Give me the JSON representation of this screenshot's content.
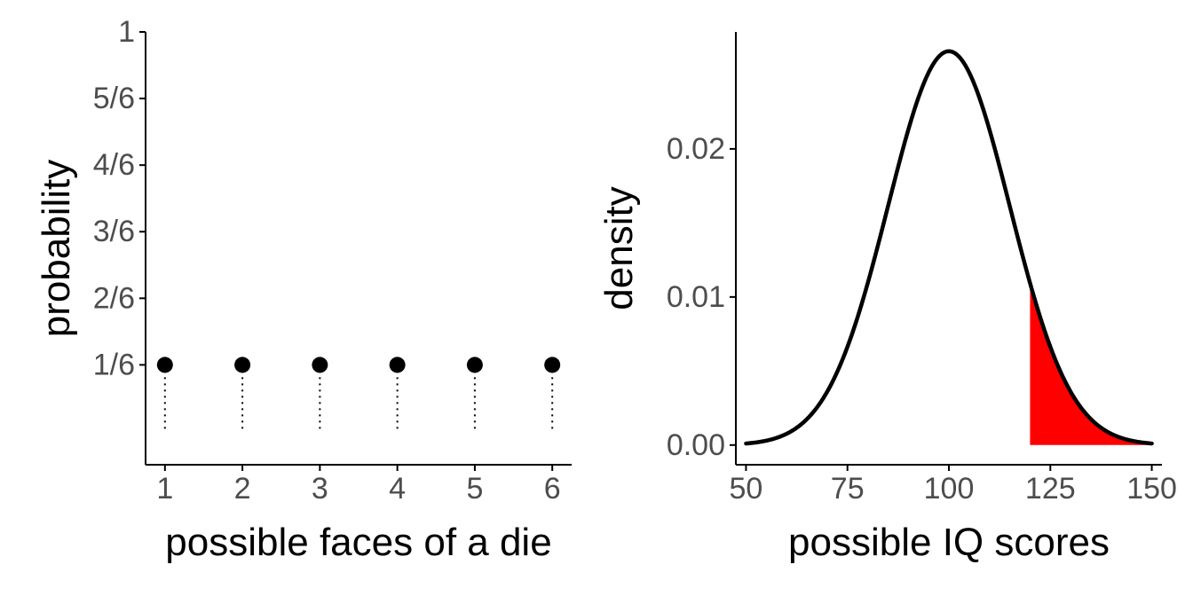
{
  "chart_data": [
    {
      "type": "scatter",
      "panel": "left",
      "x": [
        1,
        2,
        3,
        4,
        5,
        6
      ],
      "y": [
        0.16667,
        0.16667,
        0.16667,
        0.16667,
        0.16667,
        0.16667
      ],
      "xticks": [
        "1",
        "2",
        "3",
        "4",
        "5",
        "6"
      ],
      "yticks": [
        {
          "value": 0.16667,
          "label": "1/6"
        },
        {
          "value": 0.33333,
          "label": "2/6"
        },
        {
          "value": 0.5,
          "label": "3/6"
        },
        {
          "value": 0.66667,
          "label": "4/6"
        },
        {
          "value": 0.83333,
          "label": "5/6"
        },
        {
          "value": 1,
          "label": "1"
        }
      ],
      "xlabel": "possible faces of a die",
      "ylabel": "probability",
      "xlim": [
        0.75,
        6.25
      ],
      "ylim": [
        -0.0833,
        1.0
      ],
      "grid": false,
      "point_color": "#000000"
    },
    {
      "type": "area",
      "panel": "right",
      "distribution": "normal",
      "mean": 100,
      "sd": 15,
      "x_range": [
        50,
        150
      ],
      "shaded_from": 120,
      "shaded_to": 150,
      "xticks": [
        50,
        75,
        100,
        125,
        150
      ],
      "yticks": [
        {
          "value": 0,
          "label": "0.00"
        },
        {
          "value": 0.01,
          "label": "0.01"
        },
        {
          "value": 0.02,
          "label": "0.02"
        }
      ],
      "xlabel": "possible IQ scores",
      "ylabel": "density",
      "xlim": [
        47.5,
        152.5
      ],
      "ylim": [
        -0.00133,
        0.0279
      ],
      "grid": false,
      "line_color": "#000000",
      "fill_color": "#ff0000"
    }
  ]
}
